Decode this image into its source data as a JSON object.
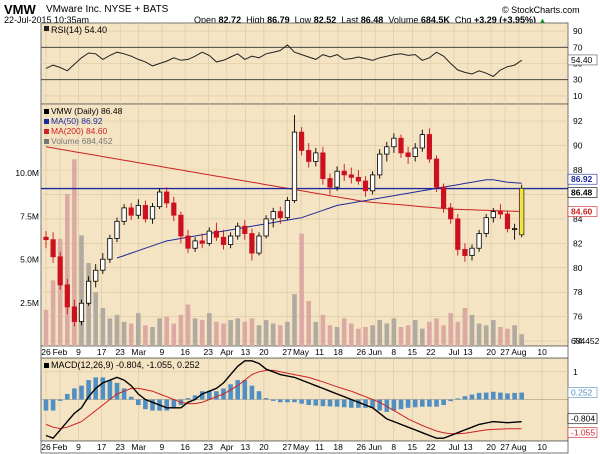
{
  "header": {
    "symbol": "VMW",
    "company": "VMware Inc.  NYSE + BATS",
    "date": "22-Jul-2015 10:35am",
    "open_label": "Open",
    "open": "82.72",
    "high_label": "High",
    "high": "86.79",
    "low_label": "Low",
    "low": "82.52",
    "last_label": "Last",
    "last": "86.48",
    "volume_label": "Volume",
    "volume": "684.5K",
    "chg_label": "Chg",
    "chg": "+3.29 (+3.95%)",
    "chg_arrow": "▲",
    "copyright": "© StockCharts.com"
  },
  "colors": {
    "panel_bg": "#f5e4c3",
    "up": "#000000",
    "down": "#cc1020",
    "ma50": "#1c2a9c",
    "ma200": "#cc2222",
    "hline": "#1c2a9c",
    "volume": "#dcaaa4",
    "rsi": "#222222",
    "macd": "#000000",
    "signal": "#cc2222",
    "histogram": "#4f8fc4",
    "last_highlight": "#f3e33a"
  },
  "chart_data": [
    {
      "type": "line",
      "panel": "rsi",
      "legend": "RSI(14) 54.40",
      "ylim": [
        0,
        100
      ],
      "yticks": [
        10,
        30,
        50,
        70,
        90
      ],
      "reference_lines": [
        30,
        70
      ],
      "last_value": 54.4,
      "last_label": "54.40",
      "values": [
        44,
        48,
        45,
        41,
        49,
        57,
        63,
        62,
        55,
        60,
        64,
        62,
        59,
        55,
        52,
        47,
        50,
        53,
        57,
        54,
        55,
        59,
        64,
        60,
        52,
        54,
        58,
        62,
        55,
        59,
        57,
        62,
        64,
        66,
        73,
        64,
        61,
        58,
        55,
        61,
        58,
        61,
        55,
        56,
        58,
        56,
        54,
        57,
        59,
        61,
        62,
        60,
        61,
        54,
        57,
        64,
        59,
        50,
        42,
        39,
        37,
        41,
        38,
        34,
        42,
        46,
        48,
        54
      ]
    },
    {
      "type": "candlestick",
      "panel": "price",
      "legend": [
        "VMW (Daily) 86.48",
        "MA(50) 86.92",
        "MA(200) 84.60",
        "Volume 684,452"
      ],
      "ylim": [
        73.6,
        93.4
      ],
      "yticks": [
        74,
        76,
        78,
        80,
        82,
        84,
        86,
        88,
        90,
        92
      ],
      "price_labels": [
        "86.92",
        "86.48",
        "84.60"
      ],
      "volume_ticks": [
        "10.0M",
        "7.5M",
        "5.0M",
        "2.5M"
      ],
      "volume_ylim": [
        0,
        14
      ],
      "volume_unit": "M",
      "last_volume_label": "684452",
      "horizontal_line": 86.48,
      "x_tick_labels": [
        "26",
        "Feb",
        "9",
        "17",
        "23",
        "Mar",
        "9",
        "16",
        "23",
        "Apr",
        "13",
        "20",
        "27",
        "May",
        "11",
        "18",
        "26",
        "Jun",
        "8",
        "15",
        "22",
        "Jul",
        "13",
        "20",
        "27",
        "Aug",
        "10"
      ],
      "ohlc": [
        [
          82.5,
          83.0,
          81.6,
          82.3
        ],
        [
          82.3,
          82.9,
          80.4,
          80.9
        ],
        [
          80.9,
          81.3,
          78.2,
          78.6
        ],
        [
          78.6,
          79.1,
          76.2,
          76.8
        ],
        [
          76.8,
          77.4,
          75.2,
          75.6
        ],
        [
          75.6,
          77.4,
          75.3,
          77.1
        ],
        [
          77.1,
          79.3,
          76.9,
          78.9
        ],
        [
          78.9,
          80.3,
          78.4,
          79.8
        ],
        [
          79.8,
          81.2,
          79.5,
          80.7
        ],
        [
          80.7,
          82.7,
          80.4,
          82.4
        ],
        [
          82.4,
          84.1,
          82.1,
          83.8
        ],
        [
          83.8,
          85.2,
          83.5,
          84.9
        ],
        [
          84.9,
          85.3,
          83.9,
          84.3
        ],
        [
          84.3,
          85.6,
          84.0,
          85.1
        ],
        [
          85.1,
          85.5,
          83.7,
          84.0
        ],
        [
          84.0,
          85.3,
          83.6,
          85.0
        ],
        [
          85.0,
          86.5,
          84.8,
          86.2
        ],
        [
          86.2,
          86.6,
          84.9,
          85.3
        ],
        [
          85.3,
          85.8,
          83.8,
          84.3
        ],
        [
          84.3,
          84.6,
          82.0,
          82.6
        ],
        [
          82.6,
          83.1,
          81.2,
          81.6
        ],
        [
          81.6,
          82.5,
          81.3,
          82.2
        ],
        [
          82.2,
          82.8,
          81.6,
          82.0
        ],
        [
          82.0,
          83.3,
          81.8,
          83.0
        ],
        [
          83.0,
          83.7,
          82.2,
          82.5
        ],
        [
          82.5,
          83.1,
          81.5,
          81.9
        ],
        [
          81.9,
          82.9,
          81.6,
          82.6
        ],
        [
          82.6,
          83.7,
          82.3,
          83.4
        ],
        [
          83.4,
          83.9,
          82.3,
          82.8
        ],
        [
          82.8,
          83.2,
          80.6,
          81.2
        ],
        [
          81.2,
          82.9,
          81.0,
          82.6
        ],
        [
          82.6,
          84.3,
          82.4,
          84.0
        ],
        [
          84.0,
          84.9,
          83.3,
          84.6
        ],
        [
          84.6,
          85.0,
          83.6,
          84.1
        ],
        [
          84.1,
          85.8,
          83.9,
          85.5
        ],
        [
          85.5,
          92.5,
          85.3,
          91.1
        ],
        [
          91.1,
          91.5,
          89.2,
          89.6
        ],
        [
          89.6,
          90.2,
          88.2,
          88.7
        ],
        [
          88.7,
          89.8,
          88.3,
          89.4
        ],
        [
          89.4,
          89.9,
          86.8,
          87.3
        ],
        [
          87.3,
          87.7,
          86.0,
          86.6
        ],
        [
          86.6,
          88.3,
          86.3,
          87.9
        ],
        [
          87.9,
          88.5,
          87.1,
          87.6
        ],
        [
          87.6,
          88.2,
          86.9,
          87.4
        ],
        [
          87.4,
          88.0,
          86.8,
          87.1
        ],
        [
          87.1,
          87.5,
          85.8,
          86.3
        ],
        [
          86.3,
          87.9,
          86.0,
          87.6
        ],
        [
          87.6,
          89.7,
          87.3,
          89.3
        ],
        [
          89.3,
          90.3,
          88.7,
          89.9
        ],
        [
          89.9,
          91.0,
          89.4,
          90.6
        ],
        [
          90.6,
          90.9,
          89.0,
          89.4
        ],
        [
          89.4,
          89.9,
          88.5,
          89.1
        ],
        [
          89.1,
          90.2,
          88.7,
          89.8
        ],
        [
          89.8,
          91.3,
          89.5,
          90.9
        ],
        [
          90.9,
          91.4,
          88.6,
          88.9
        ],
        [
          88.9,
          89.2,
          86.2,
          86.6
        ],
        [
          86.6,
          86.9,
          84.5,
          84.9
        ],
        [
          84.9,
          85.3,
          83.6,
          84.0
        ],
        [
          84.0,
          84.4,
          81.0,
          81.5
        ],
        [
          81.5,
          82.0,
          80.5,
          81.0
        ],
        [
          81.0,
          81.9,
          80.6,
          81.6
        ],
        [
          81.6,
          83.1,
          81.3,
          82.8
        ],
        [
          82.8,
          84.4,
          82.5,
          84.1
        ],
        [
          84.1,
          84.9,
          83.7,
          84.6
        ],
        [
          84.6,
          85.2,
          84.0,
          84.4
        ],
        [
          84.4,
          84.6,
          82.9,
          83.2
        ],
        [
          83.2,
          83.6,
          82.3,
          83.2
        ],
        [
          82.7,
          86.8,
          82.5,
          86.5
        ]
      ],
      "ma50": [
        null,
        null,
        null,
        null,
        null,
        null,
        null,
        null,
        null,
        null,
        80.8,
        81.0,
        81.2,
        81.4,
        81.6,
        81.8,
        82.0,
        82.2,
        82.3,
        82.4,
        82.5,
        82.6,
        82.7,
        82.8,
        82.9,
        83.0,
        83.1,
        83.2,
        83.3,
        83.4,
        83.5,
        83.6,
        83.7,
        83.8,
        83.9,
        84.0,
        84.1,
        84.3,
        84.5,
        84.7,
        84.9,
        85.1,
        85.2,
        85.3,
        85.4,
        85.5,
        85.6,
        85.7,
        85.8,
        85.9,
        86.0,
        86.1,
        86.2,
        86.3,
        86.4,
        86.5,
        86.6,
        86.7,
        86.8,
        86.9,
        87.0,
        87.1,
        87.2,
        87.2,
        87.1,
        87.0,
        86.95,
        86.92
      ],
      "ma200": [
        89.9,
        89.8,
        89.7,
        89.6,
        89.5,
        89.4,
        89.3,
        89.2,
        89.1,
        89.0,
        88.9,
        88.8,
        88.7,
        88.6,
        88.5,
        88.4,
        88.3,
        88.2,
        88.1,
        88.0,
        87.9,
        87.8,
        87.7,
        87.6,
        87.5,
        87.4,
        87.3,
        87.2,
        87.1,
        87.0,
        86.9,
        86.8,
        86.7,
        86.6,
        86.5,
        86.4,
        86.3,
        86.2,
        86.1,
        86.0,
        85.9,
        85.8,
        85.7,
        85.6,
        85.5,
        85.4,
        85.35,
        85.3,
        85.25,
        85.2,
        85.15,
        85.1,
        85.05,
        85.0,
        84.95,
        84.9,
        84.85,
        84.8,
        84.78,
        84.76,
        84.74,
        84.72,
        84.7,
        84.68,
        84.66,
        84.64,
        84.62,
        84.6
      ],
      "volume": [
        2.1,
        3.8,
        6.2,
        8.8,
        10.8,
        6.4,
        4.8,
        3.1,
        2.2,
        1.6,
        1.8,
        1.4,
        1.3,
        1.9,
        1.2,
        1.1,
        1.6,
        1.7,
        1.3,
        1.8,
        2.4,
        1.6,
        1.5,
        1.9,
        1.4,
        1.3,
        1.5,
        1.6,
        1.4,
        1.6,
        1.2,
        1.5,
        1.3,
        1.2,
        1.4,
        3.0,
        6.5,
        2.6,
        1.4,
        1.8,
        1.2,
        1.1,
        1.6,
        1.3,
        1.0,
        1.1,
        1.2,
        1.5,
        1.3,
        1.6,
        1.1,
        1.2,
        1.5,
        1.0,
        1.4,
        1.6,
        1.2,
        1.9,
        1.4,
        2.2,
        1.8,
        1.3,
        1.2,
        1.5,
        1.1,
        1.0,
        1.2,
        0.68
      ]
    },
    {
      "type": "line",
      "panel": "macd",
      "legend": "MACD(12,26,9) -0.804, -1.055, 0.252",
      "ylim": [
        -1.5,
        1.5
      ],
      "yticks": [
        1
      ],
      "value_labels": [
        "0.252",
        "-0.804",
        "-1.055"
      ],
      "macd": [
        -1.3,
        -1.4,
        -1.1,
        -0.8,
        -0.5,
        -0.3,
        0.1,
        0.4,
        0.6,
        0.7,
        0.8,
        0.7,
        0.5,
        0.2,
        0.0,
        -0.1,
        -0.2,
        -0.3,
        -0.3,
        -0.3,
        -0.1,
        0.0,
        0.2,
        0.3,
        0.4,
        0.6,
        0.9,
        1.2,
        1.4,
        1.4,
        1.3,
        1.1,
        1.0,
        0.9,
        0.85,
        0.8,
        0.7,
        0.6,
        0.5,
        0.4,
        0.3,
        0.2,
        0.1,
        0.0,
        -0.1,
        -0.2,
        -0.3,
        -0.5,
        -0.7,
        -0.8,
        -0.9,
        -1.0,
        -1.1,
        -1.2,
        -1.3,
        -1.4,
        -1.4,
        -1.3,
        -1.2,
        -1.1,
        -1.0,
        -0.9,
        -0.85,
        -0.8,
        -0.82,
        -0.84,
        -0.82,
        -0.804
      ],
      "signal": [
        -0.9,
        -1.0,
        -1.05,
        -1.0,
        -0.9,
        -0.8,
        -0.6,
        -0.4,
        -0.2,
        0.0,
        0.2,
        0.3,
        0.4,
        0.4,
        0.35,
        0.3,
        0.2,
        0.1,
        0.0,
        -0.1,
        -0.15,
        -0.15,
        -0.1,
        0.0,
        0.1,
        0.2,
        0.35,
        0.5,
        0.7,
        0.9,
        1.0,
        1.05,
        1.05,
        1.0,
        0.95,
        0.9,
        0.85,
        0.8,
        0.72,
        0.64,
        0.55,
        0.46,
        0.38,
        0.3,
        0.2,
        0.1,
        0.0,
        -0.1,
        -0.25,
        -0.4,
        -0.55,
        -0.7,
        -0.82,
        -0.94,
        -1.04,
        -1.14,
        -1.2,
        -1.24,
        -1.24,
        -1.22,
        -1.18,
        -1.14,
        -1.1,
        -1.08,
        -1.07,
        -1.06,
        -1.058,
        -1.055
      ]
    }
  ]
}
